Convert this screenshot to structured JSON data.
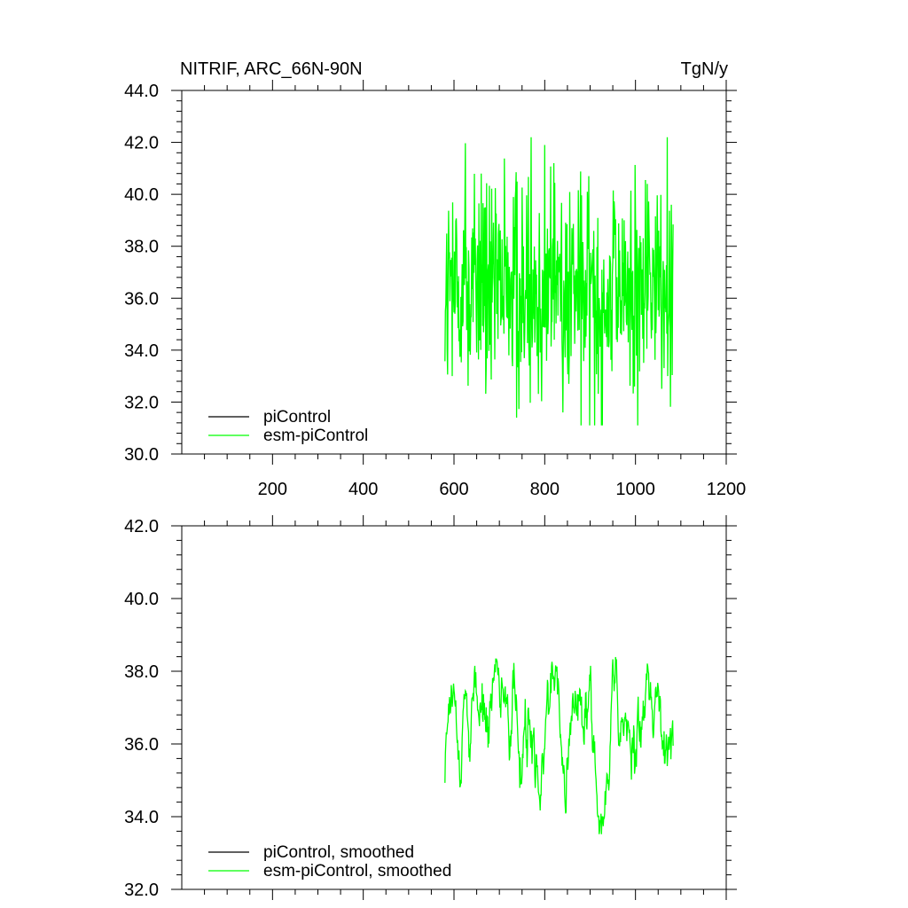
{
  "colors": {
    "background": "#ffffff",
    "axis": "#000000",
    "picontrol": "#000000",
    "esm_picontrol": "#00ff00"
  },
  "chart_data": [
    {
      "type": "line",
      "title": "NITRIF, ARC_66N-90N",
      "units": "TgN/y",
      "xlim": [
        0,
        1200
      ],
      "ylim": [
        30,
        44
      ],
      "xticks": [
        200,
        400,
        600,
        800,
        1000,
        1200
      ],
      "xtick_labels": [
        "200",
        "400",
        "600",
        "800",
        "1000",
        "1200"
      ],
      "yticks": [
        30,
        32,
        34,
        36,
        38,
        40,
        42,
        44
      ],
      "ytick_labels": [
        "30.0",
        "32.0",
        "34.0",
        "36.0",
        "38.0",
        "40.0",
        "42.0",
        "44.0"
      ],
      "legend": [
        "piControl",
        "esm-piControl"
      ],
      "series": [
        {
          "name": "piControl",
          "color": "#000000",
          "x": [],
          "values": []
        },
        {
          "name": "esm-piControl",
          "color": "#00ff00",
          "x_start": 580,
          "x_end": 1083,
          "values": []
        }
      ]
    },
    {
      "type": "line",
      "title": "",
      "units": "",
      "xlim": [
        0,
        1200
      ],
      "ylim": [
        32,
        42
      ],
      "xticks": [
        200,
        400,
        600,
        800,
        1000,
        1200
      ],
      "xtick_labels": [],
      "yticks": [
        32,
        34,
        36,
        38,
        40,
        42
      ],
      "ytick_labels": [
        "32.0",
        "34.0",
        "36.0",
        "38.0",
        "40.0",
        "42.0"
      ],
      "legend": [
        "piControl, smoothed",
        "esm-piControl, smoothed"
      ],
      "series": [
        {
          "name": "piControl, smoothed",
          "color": "#000000",
          "x": [],
          "values": []
        },
        {
          "name": "esm-piControl, smoothed",
          "color": "#00ff00",
          "x_start": 580,
          "x_end": 1083,
          "values": []
        }
      ]
    }
  ]
}
